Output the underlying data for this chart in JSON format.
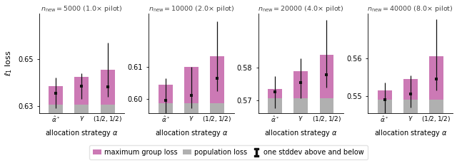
{
  "panels": [
    {
      "title": "$n_{\\mathrm{new}} = 5000\\ (1.0{\\times}\\ \\mathrm{pilot})$",
      "xlabels": [
        "$\\hat{\\alpha}^*$",
        "$\\gamma$",
        "$(1/2,1/2)$"
      ],
      "max_group_loss": [
        0.6385,
        0.6425,
        0.6455
      ],
      "pop_loss": [
        0.6305,
        0.6305,
        0.6305
      ],
      "error_center": [
        0.6355,
        0.6385,
        0.638
      ],
      "error_low": [
        0.0065,
        0.0055,
        0.004
      ],
      "error_high": [
        0.0065,
        0.0055,
        0.019
      ],
      "ylim": [
        0.627,
        0.6695
      ],
      "yticks": [
        0.63,
        0.65
      ],
      "ylabel": "$\\ell_1$ loss"
    },
    {
      "title": "$n_{\\mathrm{new}} = 10000\\ (2.0{\\times}\\ \\mathrm{pilot})$",
      "xlabels": [
        "$\\hat{\\alpha}^*$",
        "$\\gamma$",
        "$(1/2,1/2)$"
      ],
      "max_group_loss": [
        0.6045,
        0.61,
        0.6135
      ],
      "pop_loss": [
        0.5985,
        0.5985,
        0.5985
      ],
      "error_center": [
        0.5995,
        0.601,
        0.6065
      ],
      "error_low": [
        0.006,
        0.004,
        0.004
      ],
      "error_high": [
        0.007,
        0.009,
        0.018
      ],
      "ylim": [
        0.5955,
        0.627
      ],
      "yticks": [
        0.6,
        0.61
      ],
      "ylabel": ""
    },
    {
      "title": "$n_{\\mathrm{new}} = 20000\\ (4.0{\\times}\\ \\mathrm{pilot})$",
      "xlabels": [
        "$\\hat{\\alpha}^*$",
        "$\\gamma$",
        "$(1/2,1/2)$"
      ],
      "max_group_loss": [
        0.5735,
        0.579,
        0.584
      ],
      "pop_loss": [
        0.5705,
        0.5705,
        0.5705
      ],
      "error_center": [
        0.5725,
        0.5755,
        0.578
      ],
      "error_low": [
        0.005,
        0.005,
        0.004
      ],
      "error_high": [
        0.005,
        0.0075,
        0.017
      ],
      "ylim": [
        0.566,
        0.597
      ],
      "yticks": [
        0.57,
        0.58
      ],
      "ylabel": ""
    },
    {
      "title": "$n_{\\mathrm{new}} = 40000\\ (8.0{\\times}\\ \\mathrm{pilot})$",
      "xlabels": [
        "$\\hat{\\alpha}^*$",
        "$\\gamma$",
        "$(1/2,1/2)$"
      ],
      "max_group_loss": [
        0.5515,
        0.5545,
        0.5605
      ],
      "pop_loss": [
        0.549,
        0.549,
        0.549
      ],
      "error_center": [
        0.549,
        0.5505,
        0.5545
      ],
      "error_low": [
        0.004,
        0.0035,
        0.003
      ],
      "error_high": [
        0.0045,
        0.005,
        0.016
      ],
      "ylim": [
        0.5455,
        0.572
      ],
      "yticks": [
        0.55,
        0.56
      ],
      "ylabel": ""
    }
  ],
  "bar_width": 0.55,
  "bar_positions": [
    0,
    1,
    2
  ],
  "color_pink": "#cc79b5",
  "color_gray": "#b0b0b0",
  "color_error": "#111111",
  "xlabel": "allocation strategy $\\alpha$",
  "legend_labels": [
    "maximum group loss",
    "population loss",
    "one stddev above and below"
  ],
  "fig_bg": "#ffffff"
}
